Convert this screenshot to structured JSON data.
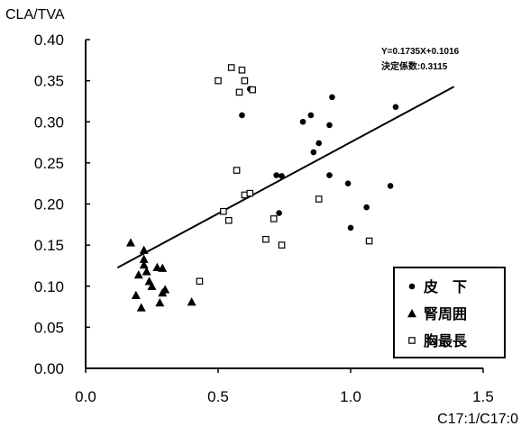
{
  "chart_data": {
    "type": "scatter",
    "title": "",
    "ylabel": "CLA/TVA",
    "xlabel": "C17:1/C17:0",
    "xlim": [
      0,
      1.5
    ],
    "ylim": [
      0,
      0.4
    ],
    "xticks": [
      "0.0",
      "0.5",
      "1.0",
      "1.5"
    ],
    "yticks": [
      "0.00",
      "0.05",
      "0.10",
      "0.15",
      "0.20",
      "0.25",
      "0.30",
      "0.35",
      "0.40"
    ],
    "grid": false,
    "legend_position": "bottom-right",
    "annotation": {
      "equation": "Y=0.1735X+0.1016",
      "r2": "決定係数:0.3115"
    },
    "trendline": {
      "slope": 0.1735,
      "intercept": 0.1016,
      "x_range": [
        0.12,
        1.39
      ]
    },
    "series": [
      {
        "name": "皮　下",
        "marker": "circle",
        "points": [
          [
            0.59,
            0.308
          ],
          [
            0.62,
            0.34
          ],
          [
            0.72,
            0.235
          ],
          [
            0.74,
            0.234
          ],
          [
            0.73,
            0.189
          ],
          [
            0.82,
            0.3
          ],
          [
            0.85,
            0.308
          ],
          [
            0.86,
            0.263
          ],
          [
            0.88,
            0.274
          ],
          [
            0.92,
            0.296
          ],
          [
            0.93,
            0.33
          ],
          [
            0.92,
            0.235
          ],
          [
            0.99,
            0.225
          ],
          [
            1.0,
            0.171
          ],
          [
            1.06,
            0.196
          ],
          [
            1.15,
            0.222
          ],
          [
            1.17,
            0.318
          ]
        ]
      },
      {
        "name": "腎周囲",
        "marker": "triangle",
        "points": [
          [
            0.17,
            0.153
          ],
          [
            0.19,
            0.089
          ],
          [
            0.2,
            0.114
          ],
          [
            0.21,
            0.074
          ],
          [
            0.22,
            0.144
          ],
          [
            0.22,
            0.133
          ],
          [
            0.22,
            0.126
          ],
          [
            0.23,
            0.118
          ],
          [
            0.24,
            0.106
          ],
          [
            0.25,
            0.1
          ],
          [
            0.27,
            0.123
          ],
          [
            0.28,
            0.08
          ],
          [
            0.29,
            0.122
          ],
          [
            0.29,
            0.092
          ],
          [
            0.3,
            0.096
          ],
          [
            0.4,
            0.081
          ]
        ]
      },
      {
        "name": "胸最長",
        "marker": "square",
        "points": [
          [
            0.5,
            0.35
          ],
          [
            0.55,
            0.366
          ],
          [
            0.59,
            0.363
          ],
          [
            0.6,
            0.35
          ],
          [
            0.63,
            0.339
          ],
          [
            0.58,
            0.336
          ],
          [
            0.57,
            0.241
          ],
          [
            0.6,
            0.211
          ],
          [
            0.62,
            0.213
          ],
          [
            0.52,
            0.191
          ],
          [
            0.54,
            0.18
          ],
          [
            0.68,
            0.157
          ],
          [
            0.71,
            0.182
          ],
          [
            0.74,
            0.15
          ],
          [
            0.88,
            0.206
          ],
          [
            1.07,
            0.155
          ],
          [
            0.43,
            0.106
          ]
        ]
      }
    ]
  }
}
